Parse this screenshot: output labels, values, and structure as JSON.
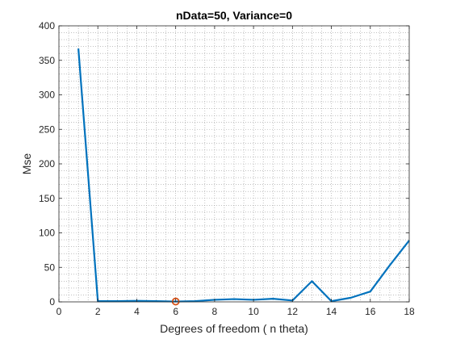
{
  "chart_data": {
    "type": "line",
    "title": "nData=50, Variance=0",
    "xlabel": "Degrees of freedom ( n theta)",
    "ylabel": "Mse",
    "xlim": [
      0,
      18
    ],
    "ylim": [
      0,
      400
    ],
    "xticks": [
      0,
      2,
      4,
      6,
      8,
      10,
      12,
      14,
      16,
      18
    ],
    "yticks": [
      0,
      50,
      100,
      150,
      200,
      250,
      300,
      350,
      400
    ],
    "grid": "minor-dotted",
    "series": [
      {
        "color": "#0072bd",
        "x": [
          1,
          2,
          3,
          4,
          5,
          6,
          7,
          8,
          9,
          10,
          11,
          12,
          13,
          14,
          15,
          16,
          17,
          18
        ],
        "y": [
          367,
          1,
          1,
          1.5,
          1,
          0.5,
          1,
          3,
          4,
          3,
          4.5,
          2,
          30,
          1,
          6,
          15,
          53,
          89
        ]
      }
    ],
    "highlight": {
      "x": 6,
      "y": 0.5,
      "color": "#d95319",
      "marker": "circle"
    }
  }
}
